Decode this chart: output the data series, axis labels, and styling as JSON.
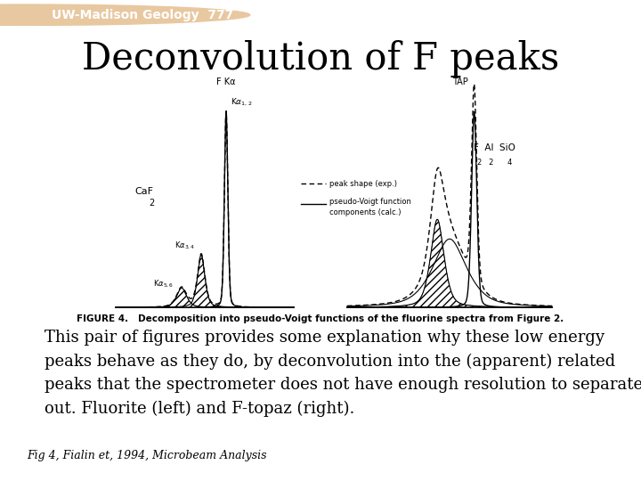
{
  "title": "Deconvolution of F peaks",
  "title_fontsize": 30,
  "bg_color": "#ffffff",
  "header_bg": "#cc2200",
  "header_text": "UW-Madison Geology  777",
  "header_fontsize": 10,
  "body_text": "This pair of figures provides some explanation why these low energy\npeaks behave as they do, by deconvolution into the (apparent) related\npeaks that the spectrometer does not have enough resolution to separate\nout. Fluorite (left) and F-topaz (right).",
  "body_fontsize": 13,
  "caption_text": "FIGURE 4.   Decomposition into pseudo-Voigt functions of the fluorine spectra from Figure 2.",
  "caption_fontsize": 7.5,
  "footnote": "Fig 4, Fialin et, 1994, Microbeam Analysis",
  "footnote_fontsize": 9,
  "legend_dashed": "peak shape (exp.)",
  "legend_solid": "pseudo-Voigt function\ncomponents (calc.)",
  "label_fka": "F Kα",
  "label_tap": "TAP",
  "label_caf2": "CaF",
  "label_topaz": "F  Al  SiO",
  "label_topaz2": "2   2     4",
  "label_topaz_F2": "2",
  "peak_l1": "Kα₁₂",
  "peak_l2": "Kα₃₄",
  "peak_l3": "Kα₅₆"
}
